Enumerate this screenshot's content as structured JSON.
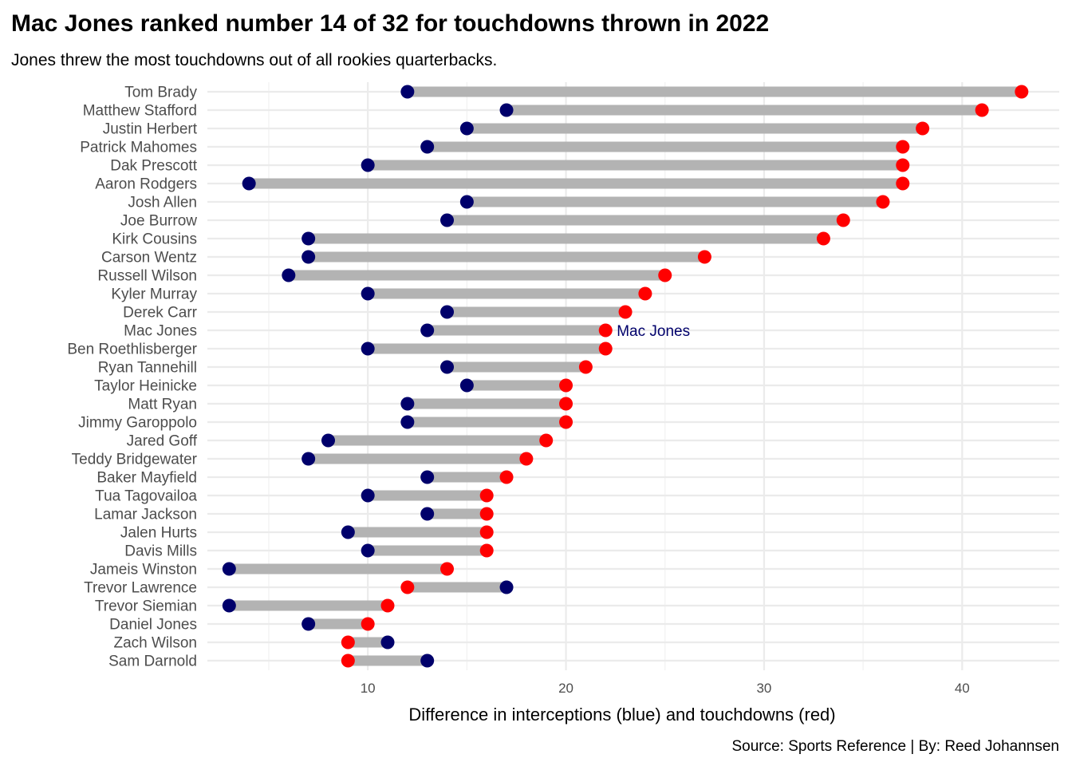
{
  "chart_data": {
    "type": "dumbbell",
    "title": "Mac Jones ranked number 14 of 32 for touchdowns thrown in 2022",
    "subtitle": "Jones threw the most touchdowns out of all rookies quarterbacks.",
    "xlabel": "Difference in interceptions (blue) and touchdowns (red)",
    "caption": "Source: Sports Reference | By: Reed Johannsen",
    "xlim": [
      1.9,
      44.9
    ],
    "xticks": [
      "10",
      "20",
      "30",
      "40"
    ],
    "grid": true,
    "colors": {
      "interceptions": "#00006b",
      "touchdowns": "#ff0000",
      "segment": "#b3b3b3",
      "annotation": "#00006b"
    },
    "annotation": {
      "text": "Mac Jones",
      "player": "Mac Jones"
    },
    "players": [
      {
        "name": "Tom Brady",
        "interceptions": 12,
        "touchdowns": 43
      },
      {
        "name": "Matthew Stafford",
        "interceptions": 17,
        "touchdowns": 41
      },
      {
        "name": "Justin Herbert",
        "interceptions": 15,
        "touchdowns": 38
      },
      {
        "name": "Patrick Mahomes",
        "interceptions": 13,
        "touchdowns": 37
      },
      {
        "name": "Dak Prescott",
        "interceptions": 10,
        "touchdowns": 37
      },
      {
        "name": "Aaron Rodgers",
        "interceptions": 4,
        "touchdowns": 37
      },
      {
        "name": "Josh Allen",
        "interceptions": 15,
        "touchdowns": 36
      },
      {
        "name": "Joe Burrow",
        "interceptions": 14,
        "touchdowns": 34
      },
      {
        "name": "Kirk Cousins",
        "interceptions": 7,
        "touchdowns": 33
      },
      {
        "name": "Carson Wentz",
        "interceptions": 7,
        "touchdowns": 27
      },
      {
        "name": "Russell Wilson",
        "interceptions": 6,
        "touchdowns": 25
      },
      {
        "name": "Kyler Murray",
        "interceptions": 10,
        "touchdowns": 24
      },
      {
        "name": "Derek Carr",
        "interceptions": 14,
        "touchdowns": 23
      },
      {
        "name": "Mac Jones",
        "interceptions": 13,
        "touchdowns": 22
      },
      {
        "name": "Ben Roethlisberger",
        "interceptions": 10,
        "touchdowns": 22
      },
      {
        "name": "Ryan Tannehill",
        "interceptions": 14,
        "touchdowns": 21
      },
      {
        "name": "Taylor Heinicke",
        "interceptions": 15,
        "touchdowns": 20
      },
      {
        "name": "Matt Ryan",
        "interceptions": 12,
        "touchdowns": 20
      },
      {
        "name": "Jimmy Garoppolo",
        "interceptions": 12,
        "touchdowns": 20
      },
      {
        "name": "Jared Goff",
        "interceptions": 8,
        "touchdowns": 19
      },
      {
        "name": "Teddy Bridgewater",
        "interceptions": 7,
        "touchdowns": 18
      },
      {
        "name": "Baker Mayfield",
        "interceptions": 13,
        "touchdowns": 17
      },
      {
        "name": "Tua Tagovailoa",
        "interceptions": 10,
        "touchdowns": 16
      },
      {
        "name": "Lamar Jackson",
        "interceptions": 13,
        "touchdowns": 16
      },
      {
        "name": "Jalen Hurts",
        "interceptions": 9,
        "touchdowns": 16
      },
      {
        "name": "Davis Mills",
        "interceptions": 10,
        "touchdowns": 16
      },
      {
        "name": "Jameis Winston",
        "interceptions": 3,
        "touchdowns": 14
      },
      {
        "name": "Trevor Lawrence",
        "interceptions": 17,
        "touchdowns": 12
      },
      {
        "name": "Trevor Siemian",
        "interceptions": 3,
        "touchdowns": 11
      },
      {
        "name": "Daniel Jones",
        "interceptions": 7,
        "touchdowns": 10
      },
      {
        "name": "Zach Wilson",
        "interceptions": 11,
        "touchdowns": 9
      },
      {
        "name": "Sam Darnold",
        "interceptions": 13,
        "touchdowns": 9
      }
    ]
  }
}
